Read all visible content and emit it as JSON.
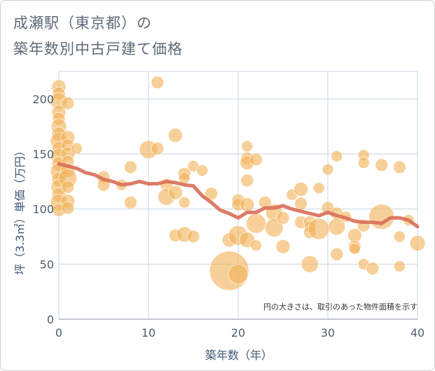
{
  "title": {
    "line1": "成瀬駅（東京都）の",
    "line2": "築年数別中古戸建て価格"
  },
  "note": "円の大きさは、取引のあった物件面積を示す",
  "colors": {
    "bubble": "#f2b35a",
    "line": "#d9705a",
    "grid": "#c9d4e0",
    "axis": "#b0b8c0"
  },
  "chart_data": {
    "type": "scatter",
    "xlabel": "築年数（年）",
    "ylabel": "坪（3.3㎡）単価（万円）",
    "xlim": [
      0,
      40
    ],
    "ylim": [
      0,
      225
    ],
    "xticks": [
      0,
      10,
      20,
      30,
      40
    ],
    "yticks": [
      0,
      50,
      100,
      150,
      200
    ],
    "grid": true,
    "points": [
      {
        "x": 0,
        "y": 211,
        "s": 10
      },
      {
        "x": 0,
        "y": 205,
        "s": 9
      },
      {
        "x": 0,
        "y": 198,
        "s": 12
      },
      {
        "x": 0,
        "y": 188,
        "s": 10
      },
      {
        "x": 0,
        "y": 182,
        "s": 9
      },
      {
        "x": 0,
        "y": 175,
        "s": 11
      },
      {
        "x": 0,
        "y": 168,
        "s": 10
      },
      {
        "x": 0,
        "y": 162,
        "s": 12
      },
      {
        "x": 0,
        "y": 155,
        "s": 10
      },
      {
        "x": 0,
        "y": 148,
        "s": 11
      },
      {
        "x": 0,
        "y": 141,
        "s": 10
      },
      {
        "x": 0,
        "y": 134,
        "s": 12
      },
      {
        "x": 0,
        "y": 127,
        "s": 10
      },
      {
        "x": 0,
        "y": 120,
        "s": 11
      },
      {
        "x": 0,
        "y": 113,
        "s": 10
      },
      {
        "x": 0,
        "y": 106,
        "s": 12
      },
      {
        "x": 0,
        "y": 99,
        "s": 9
      },
      {
        "x": 1,
        "y": 196,
        "s": 9
      },
      {
        "x": 1,
        "y": 165,
        "s": 10
      },
      {
        "x": 1,
        "y": 158,
        "s": 9
      },
      {
        "x": 1,
        "y": 150,
        "s": 10
      },
      {
        "x": 1,
        "y": 143,
        "s": 9
      },
      {
        "x": 1,
        "y": 135,
        "s": 10
      },
      {
        "x": 1,
        "y": 128,
        "s": 13
      },
      {
        "x": 1,
        "y": 120,
        "s": 9
      },
      {
        "x": 1,
        "y": 107,
        "s": 10
      },
      {
        "x": 1,
        "y": 101,
        "s": 9
      },
      {
        "x": 2,
        "y": 155,
        "s": 8
      },
      {
        "x": 5,
        "y": 129,
        "s": 9
      },
      {
        "x": 5,
        "y": 122,
        "s": 9
      },
      {
        "x": 7,
        "y": 122,
        "s": 8
      },
      {
        "x": 8,
        "y": 138,
        "s": 9
      },
      {
        "x": 8,
        "y": 106,
        "s": 9
      },
      {
        "x": 10,
        "y": 154,
        "s": 13
      },
      {
        "x": 11,
        "y": 215,
        "s": 9
      },
      {
        "x": 11,
        "y": 155,
        "s": 9
      },
      {
        "x": 12,
        "y": 122,
        "s": 9
      },
      {
        "x": 12,
        "y": 111,
        "s": 12
      },
      {
        "x": 13,
        "y": 167,
        "s": 10
      },
      {
        "x": 13,
        "y": 115,
        "s": 10
      },
      {
        "x": 13,
        "y": 76,
        "s": 9
      },
      {
        "x": 14,
        "y": 132,
        "s": 9
      },
      {
        "x": 14,
        "y": 128,
        "s": 8
      },
      {
        "x": 14,
        "y": 106,
        "s": 8
      },
      {
        "x": 14,
        "y": 77,
        "s": 11
      },
      {
        "x": 15,
        "y": 139,
        "s": 8
      },
      {
        "x": 15,
        "y": 75,
        "s": 9
      },
      {
        "x": 16,
        "y": 135,
        "s": 8
      },
      {
        "x": 17,
        "y": 114,
        "s": 9
      },
      {
        "x": 19,
        "y": 44,
        "s": 28
      },
      {
        "x": 19,
        "y": 72,
        "s": 10
      },
      {
        "x": 20,
        "y": 108,
        "s": 9
      },
      {
        "x": 20,
        "y": 104,
        "s": 9
      },
      {
        "x": 20,
        "y": 76,
        "s": 14
      },
      {
        "x": 20,
        "y": 41,
        "s": 14
      },
      {
        "x": 21,
        "y": 157,
        "s": 8
      },
      {
        "x": 21,
        "y": 146,
        "s": 9
      },
      {
        "x": 21,
        "y": 142,
        "s": 10
      },
      {
        "x": 21,
        "y": 126,
        "s": 9
      },
      {
        "x": 21,
        "y": 104,
        "s": 10
      },
      {
        "x": 21,
        "y": 72,
        "s": 11
      },
      {
        "x": 22,
        "y": 145,
        "s": 9
      },
      {
        "x": 22,
        "y": 87,
        "s": 14
      },
      {
        "x": 22,
        "y": 67,
        "s": 8
      },
      {
        "x": 23,
        "y": 106,
        "s": 9
      },
      {
        "x": 24,
        "y": 97,
        "s": 12
      },
      {
        "x": 24,
        "y": 83,
        "s": 13
      },
      {
        "x": 25,
        "y": 92,
        "s": 9
      },
      {
        "x": 25,
        "y": 66,
        "s": 10
      },
      {
        "x": 26,
        "y": 113,
        "s": 8
      },
      {
        "x": 27,
        "y": 118,
        "s": 10
      },
      {
        "x": 27,
        "y": 105,
        "s": 9
      },
      {
        "x": 27,
        "y": 88,
        "s": 9
      },
      {
        "x": 28,
        "y": 88,
        "s": 9
      },
      {
        "x": 28,
        "y": 84,
        "s": 8
      },
      {
        "x": 28,
        "y": 79,
        "s": 9
      },
      {
        "x": 28,
        "y": 50,
        "s": 12
      },
      {
        "x": 29,
        "y": 119,
        "s": 8
      },
      {
        "x": 29,
        "y": 82,
        "s": 15
      },
      {
        "x": 30,
        "y": 136,
        "s": 8
      },
      {
        "x": 30,
        "y": 101,
        "s": 9
      },
      {
        "x": 31,
        "y": 148,
        "s": 8
      },
      {
        "x": 31,
        "y": 96,
        "s": 9
      },
      {
        "x": 31,
        "y": 84,
        "s": 12
      },
      {
        "x": 31,
        "y": 59,
        "s": 9
      },
      {
        "x": 32,
        "y": 93,
        "s": 8
      },
      {
        "x": 33,
        "y": 76,
        "s": 10
      },
      {
        "x": 33,
        "y": 66,
        "s": 9
      },
      {
        "x": 33,
        "y": 64,
        "s": 8
      },
      {
        "x": 34,
        "y": 149,
        "s": 8
      },
      {
        "x": 34,
        "y": 142,
        "s": 8
      },
      {
        "x": 34,
        "y": 85,
        "s": 9
      },
      {
        "x": 34,
        "y": 50,
        "s": 8
      },
      {
        "x": 35,
        "y": 46,
        "s": 9
      },
      {
        "x": 36,
        "y": 140,
        "s": 9
      },
      {
        "x": 36,
        "y": 93,
        "s": 18
      },
      {
        "x": 38,
        "y": 138,
        "s": 9
      },
      {
        "x": 38,
        "y": 75,
        "s": 8
      },
      {
        "x": 38,
        "y": 48,
        "s": 8
      },
      {
        "x": 39,
        "y": 90,
        "s": 8
      },
      {
        "x": 40,
        "y": 69,
        "s": 11
      }
    ],
    "trend": {
      "x": [
        0,
        1,
        2,
        3,
        4,
        5,
        6,
        7,
        8,
        9,
        10,
        11,
        12,
        13,
        14,
        15,
        16,
        17,
        18,
        19,
        20,
        21,
        22,
        23,
        24,
        25,
        26,
        27,
        28,
        29,
        30,
        31,
        32,
        33,
        34,
        35,
        36,
        37,
        38,
        39,
        40
      ],
      "y": [
        141,
        139,
        137,
        133,
        131,
        127,
        125,
        122,
        123,
        125,
        123,
        123,
        125,
        124,
        122,
        121,
        112,
        106,
        99,
        96,
        92,
        97,
        97,
        101,
        101,
        103,
        100,
        98,
        96,
        94,
        97,
        94,
        92,
        89,
        88,
        88,
        87,
        92,
        92,
        90,
        84
      ]
    }
  }
}
